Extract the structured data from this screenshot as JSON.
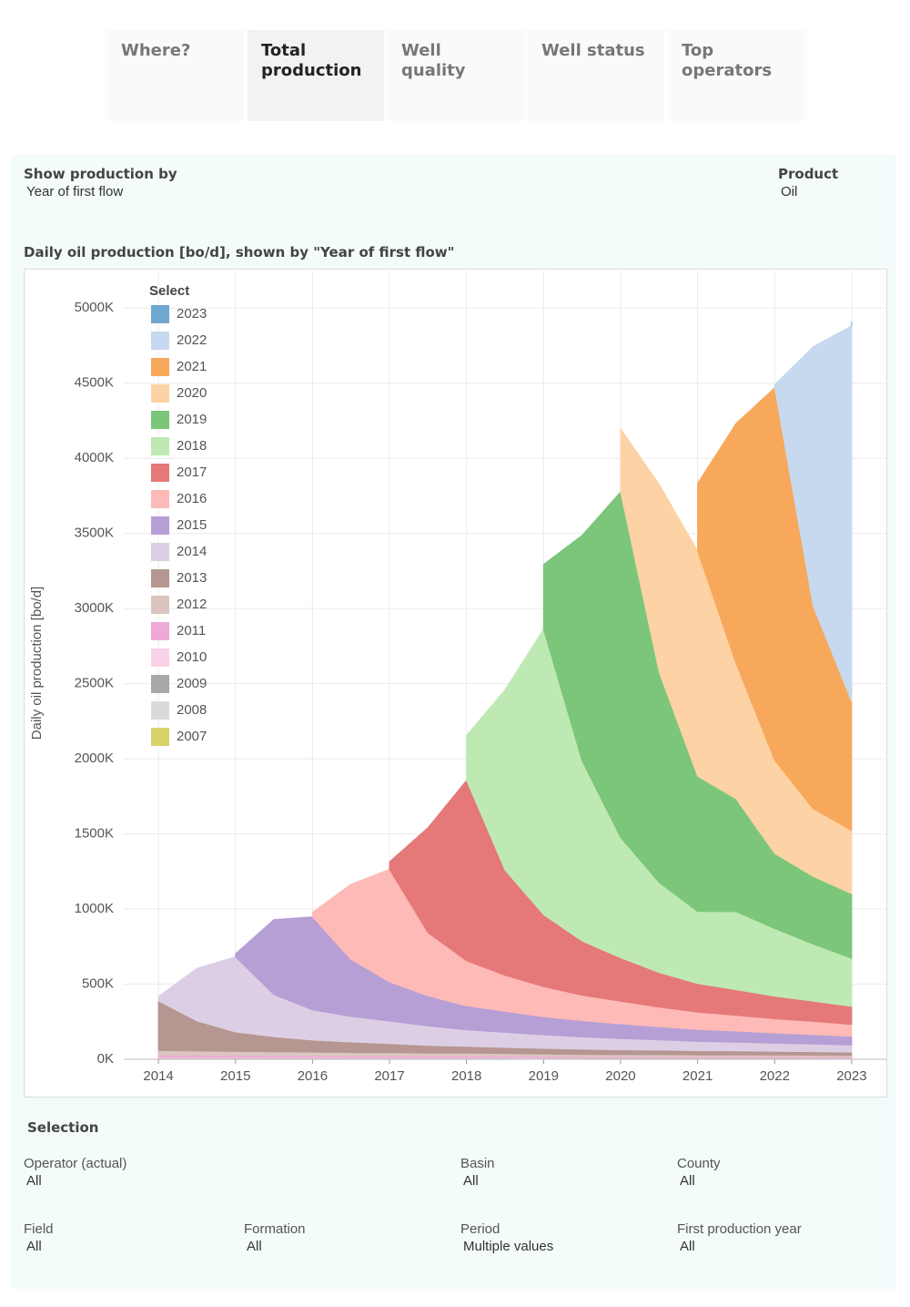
{
  "tabs": [
    "Where?",
    "Total production",
    "Well quality",
    "Well status",
    "Top operators"
  ],
  "selected_tab": 1,
  "controls": {
    "show_by": {
      "label": "Show production by",
      "value": "Year of first flow"
    },
    "product": {
      "label": "Product",
      "value": "Oil"
    }
  },
  "chart_data": {
    "type": "area",
    "stacked": true,
    "title": "Daily oil production [bo/d], shown by \"Year of first flow\"",
    "y_label": "Daily oil production [bo/d]",
    "legend_title": "Select",
    "grid": true,
    "x": [
      2014,
      2014.5,
      2015,
      2015.5,
      2016,
      2016.5,
      2017,
      2017.5,
      2018,
      2018.5,
      2019,
      2019.5,
      2020,
      2020.5,
      2021,
      2021.5,
      2022,
      2022.5,
      2023
    ],
    "xlim": [
      2013.55,
      2023.45
    ],
    "xticks": [
      2014,
      2015,
      2016,
      2017,
      2018,
      2019,
      2020,
      2021,
      2022,
      2023
    ],
    "ylim": [
      0,
      5250000
    ],
    "yticks": [
      {
        "value": 0,
        "label": "0K"
      },
      {
        "value": 500000,
        "label": "500K"
      },
      {
        "value": 1000000,
        "label": "1000K"
      },
      {
        "value": 1500000,
        "label": "1500K"
      },
      {
        "value": 2000000,
        "label": "2000K"
      },
      {
        "value": 2500000,
        "label": "2500K"
      },
      {
        "value": 3000000,
        "label": "3000K"
      },
      {
        "value": 3500000,
        "label": "3500K"
      },
      {
        "value": 4000000,
        "label": "4000K"
      },
      {
        "value": 4500000,
        "label": "4500K"
      },
      {
        "value": 5000000,
        "label": "5000K"
      }
    ],
    "series": [
      {
        "name": "2023",
        "color": "#6fa8d0",
        "values": [
          null,
          null,
          null,
          null,
          null,
          null,
          null,
          null,
          null,
          null,
          null,
          null,
          null,
          null,
          null,
          null,
          null,
          null,
          30000
        ]
      },
      {
        "name": "2022",
        "color": "#c6d9ee",
        "values": [
          null,
          null,
          null,
          null,
          null,
          null,
          null,
          null,
          null,
          null,
          null,
          null,
          null,
          null,
          null,
          null,
          20000,
          1726000,
          2500000
        ]
      },
      {
        "name": "2021",
        "color": "#f8a85a",
        "values": [
          null,
          null,
          null,
          null,
          null,
          null,
          null,
          null,
          null,
          null,
          null,
          null,
          null,
          null,
          450000,
          1600000,
          2480000,
          1350000,
          860000
        ]
      },
      {
        "name": "2020",
        "color": "#fdd2a4",
        "values": [
          null,
          null,
          null,
          null,
          null,
          null,
          null,
          null,
          null,
          null,
          null,
          null,
          420000,
          1250000,
          1500000,
          900000,
          620000,
          450000,
          420000
        ]
      },
      {
        "name": "2019",
        "color": "#7bc67a",
        "values": [
          null,
          null,
          null,
          null,
          null,
          null,
          null,
          null,
          null,
          null,
          430000,
          1500000,
          2300000,
          1400000,
          900000,
          750000,
          500000,
          450000,
          430000
        ]
      },
      {
        "name": "2018",
        "color": "#bfe9b3",
        "values": [
          null,
          null,
          null,
          null,
          null,
          null,
          null,
          null,
          300000,
          1200000,
          1900000,
          1200000,
          800000,
          600000,
          480000,
          520000,
          450000,
          380000,
          320000
        ]
      },
      {
        "name": "2017",
        "color": "#e57878",
        "values": [
          null,
          null,
          null,
          null,
          null,
          null,
          50000,
          700000,
          1200000,
          700000,
          480000,
          360000,
          290000,
          230000,
          190000,
          170000,
          150000,
          135000,
          120000
        ]
      },
      {
        "name": "2016",
        "color": "#fdbab6",
        "values": [
          null,
          null,
          null,
          null,
          30000,
          500000,
          750000,
          420000,
          300000,
          240000,
          200000,
          170000,
          150000,
          130000,
          115000,
          105000,
          95000,
          88000,
          80000
        ]
      },
      {
        "name": "2015",
        "color": "#b69fd4",
        "values": [
          null,
          null,
          20000,
          500000,
          620000,
          380000,
          260000,
          200000,
          160000,
          140000,
          120000,
          108000,
          98000,
          88000,
          80000,
          74000,
          68000,
          63000,
          58000
        ]
      },
      {
        "name": "2014",
        "color": "#dccfe5",
        "values": [
          30000,
          350000,
          500000,
          280000,
          200000,
          170000,
          150000,
          130000,
          110000,
          100000,
          90000,
          82000,
          75000,
          68000,
          62000,
          58000,
          54000,
          50000,
          46000
        ]
      },
      {
        "name": "2013",
        "color": "#b59690",
        "values": [
          330000,
          200000,
          130000,
          100000,
          80000,
          70000,
          60000,
          50000,
          45000,
          40000,
          38000,
          35000,
          32000,
          30000,
          28000,
          27000,
          25000,
          24000,
          22000
        ]
      },
      {
        "name": "2012",
        "color": "#dcc5c0",
        "values": [
          30000,
          28000,
          26000,
          25000,
          24000,
          22000,
          21000,
          20000,
          19000,
          18000,
          17000,
          16000,
          15000,
          15000,
          14000,
          14000,
          13000,
          13000,
          12000
        ]
      },
      {
        "name": "2011",
        "color": "#eeaad6",
        "values": [
          15000,
          14000,
          13000,
          12000,
          12000,
          11000,
          11000,
          10000,
          10000,
          9000,
          9000,
          8000,
          8000,
          8000,
          7000,
          7000,
          7000,
          6000,
          6000
        ]
      },
      {
        "name": "2010",
        "color": "#f9d3e5",
        "values": [
          5000,
          5000,
          5000,
          5000,
          4000,
          4000,
          4000,
          4000,
          4000,
          4000,
          4000,
          3000,
          3000,
          3000,
          3000,
          3000,
          3000,
          3000,
          3000
        ]
      },
      {
        "name": "2009",
        "color": "#a8a8a8",
        "values": [
          3000,
          3000,
          3000,
          3000,
          3000,
          3000,
          3000,
          3000,
          3000,
          3000,
          2000,
          2000,
          2000,
          2000,
          2000,
          2000,
          2000,
          2000,
          2000
        ]
      },
      {
        "name": "2008",
        "color": "#dadada",
        "values": [
          3000,
          3000,
          3000,
          3000,
          3000,
          3000,
          3000,
          3000,
          3000,
          3000,
          2000,
          2000,
          2000,
          2000,
          2000,
          2000,
          2000,
          2000,
          2000
        ]
      },
      {
        "name": "2007",
        "color": "#d6d36a",
        "values": [
          2000,
          2000,
          2000,
          2000,
          2000,
          2000,
          2000,
          2000,
          2000,
          2000,
          1000,
          1000,
          1000,
          1000,
          1000,
          1000,
          1000,
          1000,
          1000
        ]
      }
    ]
  },
  "selection": {
    "title": "Selection",
    "filters": [
      {
        "label": "Operator (actual)",
        "value": "All"
      },
      {
        "label": "Basin",
        "value": "All"
      },
      {
        "label": "County",
        "value": "All"
      },
      {
        "label": "Field",
        "value": "All"
      },
      {
        "label": "Formation",
        "value": "All"
      },
      {
        "label": "Period",
        "value": "Multiple values"
      },
      {
        "label": "First production year",
        "value": "All"
      }
    ]
  }
}
